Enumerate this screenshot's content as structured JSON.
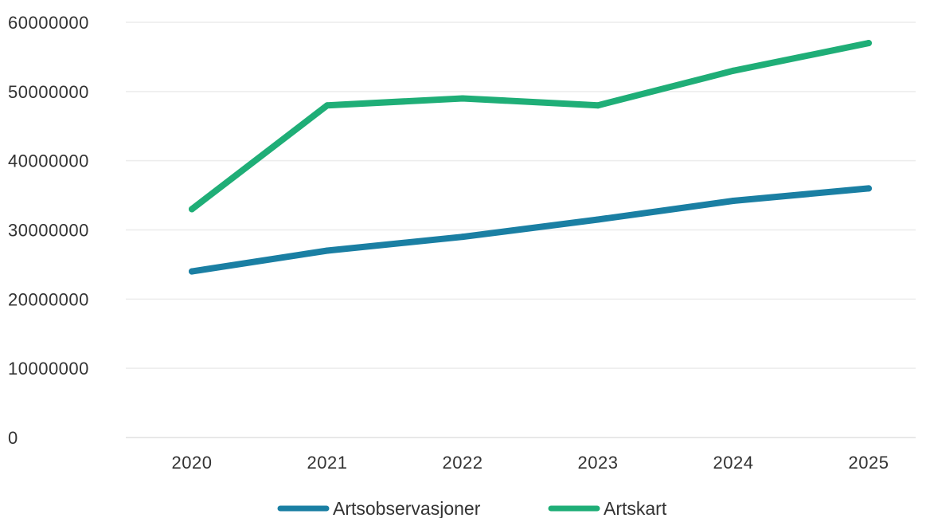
{
  "chart_data": {
    "type": "line",
    "title": "",
    "xlabel": "",
    "ylabel": "",
    "categories": [
      "2020",
      "2021",
      "2022",
      "2023",
      "2024",
      "2025"
    ],
    "ylim": [
      0,
      60000000
    ],
    "yticks": [
      0,
      10000000,
      20000000,
      30000000,
      40000000,
      50000000,
      60000000
    ],
    "ytick_labels": [
      "0",
      "10000000",
      "20000000",
      "30000000",
      "40000000",
      "50000000",
      "60000000"
    ],
    "grid": true,
    "legend_position": "bottom-center",
    "series": [
      {
        "name": "Artsobservasjoner",
        "color": "#1a7fa3",
        "values": [
          24000000,
          27000000,
          29000000,
          31500000,
          34200000,
          36000000
        ]
      },
      {
        "name": "Artskart",
        "color": "#1fae77",
        "values": [
          33000000,
          48000000,
          49000000,
          48000000,
          53000000,
          57000000
        ]
      }
    ]
  }
}
